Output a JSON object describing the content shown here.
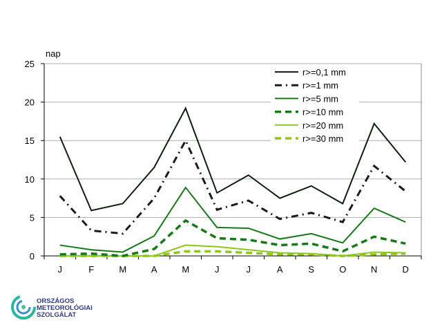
{
  "chart_data": {
    "type": "line",
    "ylabel": "nap",
    "ylim": [
      0,
      25
    ],
    "yticks": [
      0,
      5,
      10,
      15,
      20,
      25
    ],
    "categories": [
      "J",
      "F",
      "M",
      "A",
      "M",
      "J",
      "J",
      "A",
      "S",
      "O",
      "N",
      "D"
    ],
    "grid": true,
    "legend_position": "top-right",
    "series": [
      {
        "name": "r>=0,1 mm",
        "color": "#0d1f0d",
        "dash": "",
        "width": 2,
        "values": [
          15.5,
          5.9,
          6.8,
          11.5,
          19.2,
          8.2,
          10.5,
          7.5,
          9.1,
          6.8,
          17.2,
          12.2
        ]
      },
      {
        "name": "r>=1 mm",
        "color": "#1a1a1a",
        "dash": "10,6,2,6",
        "width": 3,
        "values": [
          7.8,
          3.3,
          2.9,
          7.5,
          15.0,
          6.0,
          7.2,
          4.8,
          5.6,
          4.4,
          11.7,
          8.4
        ]
      },
      {
        "name": "r>=5 mm",
        "color": "#157a15",
        "dash": "",
        "width": 2,
        "values": [
          1.4,
          0.8,
          0.5,
          2.6,
          8.9,
          3.7,
          3.6,
          2.2,
          2.9,
          1.7,
          6.2,
          4.4
        ]
      },
      {
        "name": "r>=10 mm",
        "color": "#157a15",
        "dash": "9,6",
        "width": 3.5,
        "values": [
          0.2,
          0.3,
          0.0,
          0.9,
          4.6,
          2.3,
          2.1,
          1.4,
          1.6,
          0.6,
          2.5,
          1.6
        ]
      },
      {
        "name": "r>=20 mm",
        "color": "#8cc71a",
        "dash": "",
        "width": 2,
        "values": [
          0.0,
          0.0,
          0.0,
          0.0,
          1.4,
          1.2,
          0.8,
          0.4,
          0.3,
          0.0,
          0.5,
          0.4
        ]
      },
      {
        "name": "r>=30 mm",
        "color": "#8cc71a",
        "dash": "9,6",
        "width": 3.5,
        "values": [
          0.0,
          0.0,
          0.0,
          0.0,
          0.6,
          0.6,
          0.4,
          0.2,
          0.2,
          0.0,
          0.2,
          0.3
        ]
      }
    ]
  },
  "logo": {
    "line1": "ORSZÁGOS",
    "line2": "METEOROLÓGIAI",
    "line3": "SZOLGÁLAT"
  }
}
